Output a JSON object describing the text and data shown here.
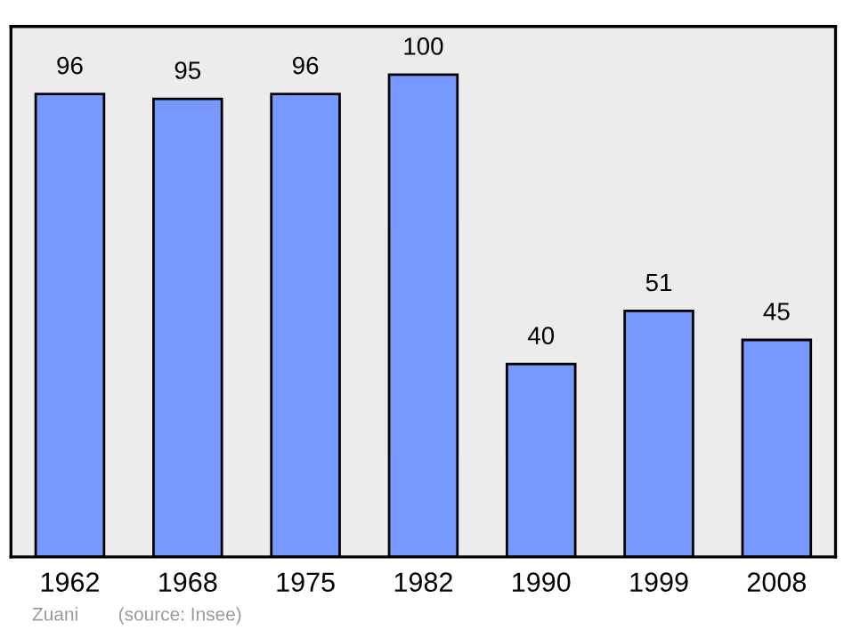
{
  "chart_data": {
    "type": "bar",
    "categories": [
      "1962",
      "1968",
      "1975",
      "1982",
      "1990",
      "1999",
      "2008"
    ],
    "values": [
      96,
      95,
      96,
      100,
      40,
      51,
      45
    ],
    "color": "#7799ff",
    "data_labels": true,
    "grid": false,
    "annotations": [
      "Zuani",
      "(source: Insee)"
    ]
  }
}
